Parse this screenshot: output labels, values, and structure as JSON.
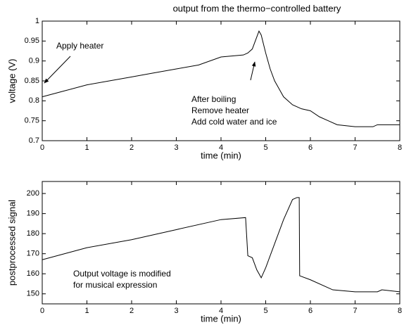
{
  "chart_data": [
    {
      "type": "line",
      "title": "output from the thermo−controlled battery",
      "xlabel": "time (min)",
      "ylabel": "voltage (V)",
      "annotations": [
        "Apply heater",
        "After boiling",
        "Remove heater",
        "Add cold water and ice"
      ],
      "x": [
        0,
        0.5,
        1,
        1.5,
        2,
        2.5,
        3,
        3.5,
        4,
        4.5,
        4.6,
        4.7,
        4.8,
        4.85,
        4.9,
        5.0,
        5.1,
        5.2,
        5.4,
        5.6,
        5.8,
        6.0,
        6.2,
        6.4,
        6.6,
        7.0,
        7.4,
        7.5,
        8
      ],
      "series": [
        {
          "color": "#000000",
          "values": [
            0.81,
            0.825,
            0.84,
            0.85,
            0.86,
            0.87,
            0.88,
            0.89,
            0.91,
            0.915,
            0.92,
            0.93,
            0.96,
            0.975,
            0.965,
            0.92,
            0.88,
            0.85,
            0.81,
            0.79,
            0.78,
            0.775,
            0.76,
            0.75,
            0.74,
            0.735,
            0.735,
            0.74,
            0.74
          ]
        }
      ],
      "xlim": [
        0,
        8
      ],
      "xticks": [
        0,
        1,
        2,
        3,
        4,
        5,
        6,
        7,
        8
      ],
      "ylim": [
        0.7,
        1
      ],
      "yticks": [
        0.7,
        0.75,
        0.8,
        0.85,
        0.9,
        0.95,
        1
      ]
    },
    {
      "type": "line",
      "xlabel": "time (min)",
      "ylabel": "postprocessed signal",
      "annotations": [
        "Output voltage is modified",
        "for musical expression"
      ],
      "x": [
        0,
        1,
        2,
        3,
        4,
        4.55,
        4.6,
        4.7,
        4.8,
        4.9,
        5.0,
        5.2,
        5.4,
        5.6,
        5.7,
        5.75,
        5.76,
        6,
        6.5,
        7,
        7.5,
        7.6,
        8
      ],
      "series": [
        {
          "color": "#000000",
          "values": [
            167,
            173,
            177,
            182,
            187,
            188,
            169,
            168,
            162,
            158,
            163,
            175,
            187,
            197,
            198,
            198,
            159,
            157,
            152,
            151,
            151,
            152,
            151
          ]
        }
      ],
      "xlim": [
        0,
        8
      ],
      "xticks": [
        0,
        1,
        2,
        3,
        4,
        5,
        6,
        7,
        8
      ],
      "ylim": [
        145,
        206
      ],
      "yticks": [
        150,
        160,
        170,
        180,
        190,
        200
      ]
    }
  ]
}
